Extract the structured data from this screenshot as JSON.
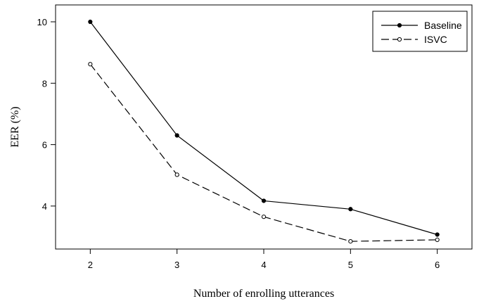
{
  "chart_data": {
    "type": "line",
    "title": "",
    "xlabel": "Number of enrolling utterances",
    "ylabel": "EER (%)",
    "x": [
      2,
      3,
      4,
      5,
      6
    ],
    "x_ticks": [
      "2",
      "3",
      "4",
      "5",
      "6"
    ],
    "y_ticks": [
      "4",
      "6",
      "8",
      "10"
    ],
    "xlim": [
      1.6,
      6.4
    ],
    "ylim": [
      2.6,
      10.55
    ],
    "grid": false,
    "legend_position": "top-right",
    "series": [
      {
        "name": "Baseline",
        "values": [
          10.0,
          6.3,
          4.17,
          3.9,
          3.07
        ],
        "line_style": "solid",
        "marker": "filled-circle",
        "color": "#000000"
      },
      {
        "name": "ISVC",
        "values": [
          8.62,
          5.02,
          3.65,
          2.85,
          2.9
        ],
        "line_style": "dashed",
        "marker": "open-circle",
        "color": "#000000"
      }
    ]
  }
}
